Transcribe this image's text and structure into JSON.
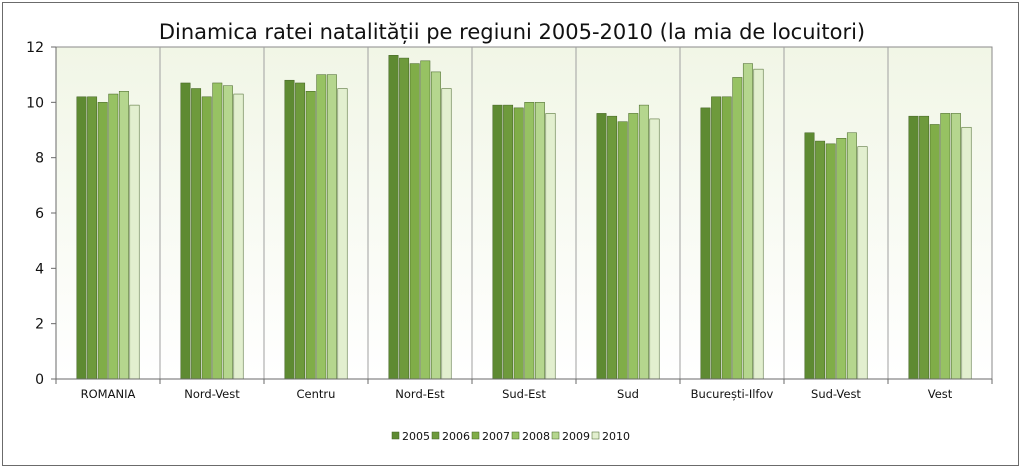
{
  "chart_data": {
    "type": "bar",
    "title": "Dinamica ratei natalității pe regiuni 2005-2010 (la mia de locuitori)",
    "xlabel": "",
    "ylabel": "",
    "ylim": [
      0,
      12
    ],
    "yticks": [
      "0",
      "2",
      "4",
      "6",
      "8",
      "10",
      "12"
    ],
    "grid": false,
    "legend_position": "bottom",
    "categories": [
      "ROMANIA",
      "Nord-Vest",
      "Centru",
      "Nord-Est",
      "Sud-Est",
      "Sud",
      "București-Ilfov",
      "Sud-Vest",
      "Vest"
    ],
    "series": [
      {
        "name": "2005",
        "color": "#5e8a32",
        "values": [
          10.2,
          10.7,
          10.8,
          11.7,
          9.9,
          9.6,
          9.8,
          8.9,
          9.5
        ]
      },
      {
        "name": "2006",
        "color": "#6e9a3c",
        "values": [
          10.2,
          10.5,
          10.7,
          11.6,
          9.9,
          9.5,
          10.2,
          8.6,
          9.5
        ]
      },
      {
        "name": "2007",
        "color": "#80ad48",
        "values": [
          10.0,
          10.2,
          10.4,
          11.4,
          9.8,
          9.3,
          10.2,
          8.5,
          9.2
        ]
      },
      {
        "name": "2008",
        "color": "#97c263",
        "values": [
          10.3,
          10.7,
          11.0,
          11.5,
          10.0,
          9.6,
          10.9,
          8.7,
          9.6
        ]
      },
      {
        "name": "2009",
        "color": "#b5d68e",
        "values": [
          10.4,
          10.6,
          11.0,
          11.1,
          10.0,
          9.9,
          11.4,
          8.9,
          9.6
        ]
      },
      {
        "name": "2010",
        "color": "#e2efcf",
        "values": [
          9.9,
          10.3,
          10.5,
          10.5,
          9.6,
          9.4,
          11.2,
          8.4,
          9.1
        ]
      }
    ]
  }
}
